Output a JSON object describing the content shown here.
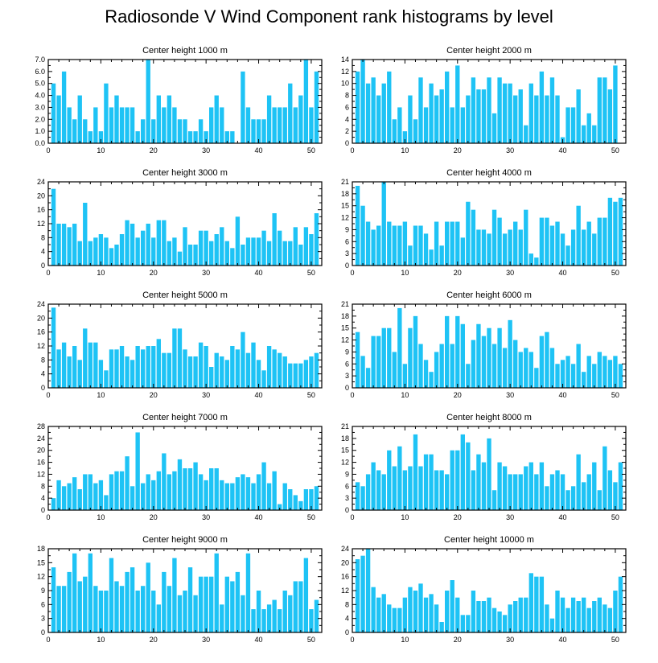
{
  "title": "Radiosonde V Wind Component rank histograms by level",
  "colors": {
    "bar": "#1ec3f5",
    "bar_edge": "#ffffff",
    "axis": "#000000"
  },
  "chart_data": [
    {
      "type": "bar",
      "title": "Center height 1000 m",
      "xlabel": "",
      "ylabel": "",
      "xlim": [
        0,
        52
      ],
      "xticks": [
        0,
        10,
        20,
        30,
        40,
        50
      ],
      "ylim": [
        0,
        7
      ],
      "yticks": [
        "0.0",
        "1.0",
        "2.0",
        "3.0",
        "4.0",
        "5.0",
        "6.0",
        "7.0"
      ],
      "x": [
        1,
        2,
        3,
        4,
        5,
        6,
        7,
        8,
        9,
        10,
        11,
        12,
        13,
        14,
        15,
        16,
        17,
        18,
        19,
        20,
        21,
        22,
        23,
        24,
        25,
        26,
        27,
        28,
        29,
        30,
        31,
        32,
        33,
        34,
        35,
        36,
        37,
        38,
        39,
        40,
        41,
        42,
        43,
        44,
        45,
        46,
        47,
        48,
        49,
        50,
        51
      ],
      "values": [
        5,
        4,
        6,
        3,
        2,
        4,
        2,
        1,
        3,
        1,
        5,
        3,
        4,
        3,
        3,
        3,
        1,
        2,
        7,
        2,
        4,
        3,
        4,
        3,
        2,
        2,
        1,
        1,
        2,
        1,
        3,
        4,
        3,
        1,
        1,
        0,
        6,
        3,
        2,
        2,
        2,
        4,
        3,
        3,
        3,
        5,
        3,
        4,
        7,
        3,
        6
      ]
    },
    {
      "type": "bar",
      "title": "Center height 2000 m",
      "xlabel": "",
      "ylabel": "",
      "xlim": [
        0,
        52
      ],
      "xticks": [
        0,
        10,
        20,
        30,
        40,
        50
      ],
      "ylim": [
        0,
        14
      ],
      "yticks": [
        "0",
        "2",
        "4",
        "6",
        "8",
        "10",
        "12",
        "14"
      ],
      "x": [
        1,
        2,
        3,
        4,
        5,
        6,
        7,
        8,
        9,
        10,
        11,
        12,
        13,
        14,
        15,
        16,
        17,
        18,
        19,
        20,
        21,
        22,
        23,
        24,
        25,
        26,
        27,
        28,
        29,
        30,
        31,
        32,
        33,
        34,
        35,
        36,
        37,
        38,
        39,
        40,
        41,
        42,
        43,
        44,
        45,
        46,
        47,
        48,
        49,
        50,
        51
      ],
      "values": [
        12,
        14,
        10,
        11,
        8,
        10,
        12,
        4,
        6,
        2,
        8,
        4,
        11,
        6,
        10,
        8,
        9,
        12,
        6,
        13,
        6,
        8,
        11,
        9,
        9,
        11,
        5,
        11,
        10,
        10,
        8,
        9,
        3,
        10,
        8,
        12,
        8,
        11,
        8,
        1,
        6,
        6,
        9,
        3,
        5,
        3,
        11,
        11,
        9,
        13,
        0
      ]
    },
    {
      "type": "bar",
      "title": "Center height 3000 m",
      "xlabel": "",
      "ylabel": "",
      "xlim": [
        0,
        52
      ],
      "xticks": [
        0,
        10,
        20,
        30,
        40,
        50
      ],
      "ylim": [
        0,
        24
      ],
      "yticks": [
        "0",
        "4",
        "8",
        "12",
        "16",
        "20",
        "24"
      ],
      "x": [
        1,
        2,
        3,
        4,
        5,
        6,
        7,
        8,
        9,
        10,
        11,
        12,
        13,
        14,
        15,
        16,
        17,
        18,
        19,
        20,
        21,
        22,
        23,
        24,
        25,
        26,
        27,
        28,
        29,
        30,
        31,
        32,
        33,
        34,
        35,
        36,
        37,
        38,
        39,
        40,
        41,
        42,
        43,
        44,
        45,
        46,
        47,
        48,
        49,
        50,
        51
      ],
      "values": [
        22,
        12,
        12,
        11,
        12,
        7,
        18,
        7,
        8,
        9,
        8,
        5,
        6,
        9,
        13,
        12,
        8,
        10,
        12,
        8,
        13,
        13,
        7,
        8,
        4,
        11,
        6,
        6,
        10,
        10,
        7,
        9,
        11,
        7,
        5,
        14,
        6,
        8,
        8,
        8,
        10,
        7,
        15,
        10,
        7,
        7,
        11,
        6,
        11,
        9,
        15
      ]
    },
    {
      "type": "bar",
      "title": "Center height 4000 m",
      "xlabel": "",
      "ylabel": "",
      "xlim": [
        0,
        52
      ],
      "xticks": [
        0,
        10,
        20,
        30,
        40,
        50
      ],
      "ylim": [
        0,
        21
      ],
      "yticks": [
        "0",
        "3",
        "6",
        "9",
        "12",
        "15",
        "18",
        "21"
      ],
      "x": [
        1,
        2,
        3,
        4,
        5,
        6,
        7,
        8,
        9,
        10,
        11,
        12,
        13,
        14,
        15,
        16,
        17,
        18,
        19,
        20,
        21,
        22,
        23,
        24,
        25,
        26,
        27,
        28,
        29,
        30,
        31,
        32,
        33,
        34,
        35,
        36,
        37,
        38,
        39,
        40,
        41,
        42,
        43,
        44,
        45,
        46,
        47,
        48,
        49,
        50,
        51
      ],
      "values": [
        20,
        15,
        11,
        9,
        10,
        21,
        11,
        10,
        10,
        11,
        5,
        10,
        10,
        8,
        4,
        11,
        5,
        11,
        11,
        11,
        7,
        16,
        14,
        9,
        9,
        8,
        14,
        12,
        8,
        9,
        11,
        9,
        14,
        3,
        2,
        12,
        12,
        10,
        11,
        8,
        5,
        9,
        15,
        9,
        11,
        8,
        12,
        12,
        17,
        16,
        17
      ]
    },
    {
      "type": "bar",
      "title": "Center height 5000 m",
      "xlabel": "",
      "ylabel": "",
      "xlim": [
        0,
        52
      ],
      "xticks": [
        0,
        10,
        20,
        30,
        40,
        50
      ],
      "ylim": [
        0,
        24
      ],
      "yticks": [
        "0",
        "4",
        "8",
        "12",
        "16",
        "20",
        "24"
      ],
      "x": [
        1,
        2,
        3,
        4,
        5,
        6,
        7,
        8,
        9,
        10,
        11,
        12,
        13,
        14,
        15,
        16,
        17,
        18,
        19,
        20,
        21,
        22,
        23,
        24,
        25,
        26,
        27,
        28,
        29,
        30,
        31,
        32,
        33,
        34,
        35,
        36,
        37,
        38,
        39,
        40,
        41,
        42,
        43,
        44,
        45,
        46,
        47,
        48,
        49,
        50,
        51
      ],
      "values": [
        23,
        11,
        13,
        9,
        12,
        8,
        17,
        13,
        13,
        8,
        5,
        11,
        11,
        12,
        9,
        8,
        12,
        11,
        12,
        12,
        14,
        10,
        10,
        17,
        17,
        11,
        9,
        9,
        13,
        12,
        6,
        10,
        9,
        8,
        12,
        11,
        16,
        10,
        13,
        8,
        5,
        12,
        11,
        10,
        9,
        7,
        7,
        7,
        8,
        9,
        10
      ]
    },
    {
      "type": "bar",
      "title": "Center height 6000 m",
      "xlabel": "",
      "ylabel": "",
      "xlim": [
        0,
        52
      ],
      "xticks": [
        0,
        10,
        20,
        30,
        40,
        50
      ],
      "ylim": [
        0,
        21
      ],
      "yticks": [
        "0",
        "3",
        "6",
        "9",
        "12",
        "15",
        "18",
        "21"
      ],
      "x": [
        1,
        2,
        3,
        4,
        5,
        6,
        7,
        8,
        9,
        10,
        11,
        12,
        13,
        14,
        15,
        16,
        17,
        18,
        19,
        20,
        21,
        22,
        23,
        24,
        25,
        26,
        27,
        28,
        29,
        30,
        31,
        32,
        33,
        34,
        35,
        36,
        37,
        38,
        39,
        40,
        41,
        42,
        43,
        44,
        45,
        46,
        47,
        48,
        49,
        50,
        51
      ],
      "values": [
        14,
        8,
        5,
        13,
        13,
        15,
        15,
        9,
        20,
        6,
        15,
        18,
        11,
        7,
        4,
        9,
        11,
        18,
        11,
        18,
        16,
        6,
        12,
        16,
        13,
        15,
        11,
        15,
        10,
        17,
        12,
        9,
        10,
        9,
        5,
        13,
        14,
        10,
        6,
        7,
        8,
        6,
        11,
        4,
        8,
        6,
        9,
        8,
        7,
        8,
        6
      ]
    },
    {
      "type": "bar",
      "title": "Center height 7000 m",
      "xlabel": "",
      "ylabel": "",
      "xlim": [
        0,
        52
      ],
      "xticks": [
        0,
        10,
        20,
        30,
        40,
        50
      ],
      "ylim": [
        0,
        28
      ],
      "yticks": [
        "0",
        "4",
        "8",
        "12",
        "16",
        "20",
        "24",
        "28"
      ],
      "x": [
        1,
        2,
        3,
        4,
        5,
        6,
        7,
        8,
        9,
        10,
        11,
        12,
        13,
        14,
        15,
        16,
        17,
        18,
        19,
        20,
        21,
        22,
        23,
        24,
        25,
        26,
        27,
        28,
        29,
        30,
        31,
        32,
        33,
        34,
        35,
        36,
        37,
        38,
        39,
        40,
        41,
        42,
        43,
        44,
        45,
        46,
        47,
        48,
        49,
        50,
        51
      ],
      "values": [
        4,
        10,
        8,
        9,
        11,
        7,
        12,
        12,
        9,
        10,
        5,
        12,
        13,
        13,
        18,
        8,
        26,
        9,
        12,
        10,
        13,
        19,
        12,
        13,
        17,
        14,
        14,
        16,
        12,
        10,
        14,
        14,
        10,
        9,
        9,
        11,
        12,
        11,
        9,
        12,
        16,
        9,
        13,
        2,
        9,
        7,
        5,
        3,
        7,
        7,
        8
      ]
    },
    {
      "type": "bar",
      "title": "Center height 8000 m",
      "xlabel": "",
      "ylabel": "",
      "xlim": [
        0,
        52
      ],
      "xticks": [
        0,
        10,
        20,
        30,
        40,
        50
      ],
      "ylim": [
        0,
        21
      ],
      "yticks": [
        "0",
        "3",
        "6",
        "9",
        "12",
        "15",
        "18",
        "21"
      ],
      "x": [
        1,
        2,
        3,
        4,
        5,
        6,
        7,
        8,
        9,
        10,
        11,
        12,
        13,
        14,
        15,
        16,
        17,
        18,
        19,
        20,
        21,
        22,
        23,
        24,
        25,
        26,
        27,
        28,
        29,
        30,
        31,
        32,
        33,
        34,
        35,
        36,
        37,
        38,
        39,
        40,
        41,
        42,
        43,
        44,
        45,
        46,
        47,
        48,
        49,
        50,
        51
      ],
      "values": [
        7,
        6,
        9,
        12,
        10,
        9,
        15,
        11,
        16,
        10,
        11,
        19,
        11,
        14,
        14,
        10,
        10,
        9,
        15,
        15,
        19,
        17,
        10,
        14,
        12,
        18,
        5,
        12,
        11,
        9,
        9,
        9,
        11,
        12,
        9,
        12,
        6,
        9,
        10,
        9,
        5,
        6,
        14,
        7,
        9,
        12,
        5,
        16,
        10,
        7,
        12
      ]
    },
    {
      "type": "bar",
      "title": "Center height 9000 m",
      "xlabel": "",
      "ylabel": "",
      "xlim": [
        0,
        52
      ],
      "xticks": [
        0,
        10,
        20,
        30,
        40,
        50
      ],
      "ylim": [
        0,
        18
      ],
      "yticks": [
        "0",
        "3",
        "6",
        "9",
        "12",
        "15",
        "18"
      ],
      "x": [
        1,
        2,
        3,
        4,
        5,
        6,
        7,
        8,
        9,
        10,
        11,
        12,
        13,
        14,
        15,
        16,
        17,
        18,
        19,
        20,
        21,
        22,
        23,
        24,
        25,
        26,
        27,
        28,
        29,
        30,
        31,
        32,
        33,
        34,
        35,
        36,
        37,
        38,
        39,
        40,
        41,
        42,
        43,
        44,
        45,
        46,
        47,
        48,
        49,
        50,
        51
      ],
      "values": [
        14,
        10,
        10,
        13,
        17,
        11,
        12,
        17,
        10,
        9,
        9,
        16,
        11,
        10,
        13,
        14,
        9,
        10,
        15,
        9,
        6,
        13,
        10,
        16,
        8,
        9,
        14,
        8,
        12,
        12,
        12,
        17,
        6,
        12,
        11,
        13,
        8,
        17,
        5,
        9,
        5,
        6,
        7,
        5,
        9,
        8,
        11,
        11,
        16,
        5,
        7
      ]
    },
    {
      "type": "bar",
      "title": "Center height 10000 m",
      "xlabel": "",
      "ylabel": "",
      "xlim": [
        0,
        52
      ],
      "xticks": [
        0,
        10,
        20,
        30,
        40,
        50
      ],
      "ylim": [
        0,
        24
      ],
      "yticks": [
        "0",
        "4",
        "8",
        "12",
        "16",
        "20",
        "24"
      ],
      "x": [
        1,
        2,
        3,
        4,
        5,
        6,
        7,
        8,
        9,
        10,
        11,
        12,
        13,
        14,
        15,
        16,
        17,
        18,
        19,
        20,
        21,
        22,
        23,
        24,
        25,
        26,
        27,
        28,
        29,
        30,
        31,
        32,
        33,
        34,
        35,
        36,
        37,
        38,
        39,
        40,
        41,
        42,
        43,
        44,
        45,
        46,
        47,
        48,
        49,
        50,
        51
      ],
      "values": [
        21,
        22,
        24,
        13,
        10,
        11,
        8,
        7,
        7,
        10,
        13,
        12,
        14,
        10,
        11,
        8,
        3,
        12,
        15,
        10,
        5,
        5,
        12,
        9,
        9,
        10,
        7,
        6,
        5,
        8,
        9,
        10,
        10,
        17,
        16,
        16,
        8,
        4,
        12,
        10,
        7,
        10,
        9,
        10,
        7,
        9,
        10,
        8,
        7,
        12,
        16
      ]
    }
  ]
}
